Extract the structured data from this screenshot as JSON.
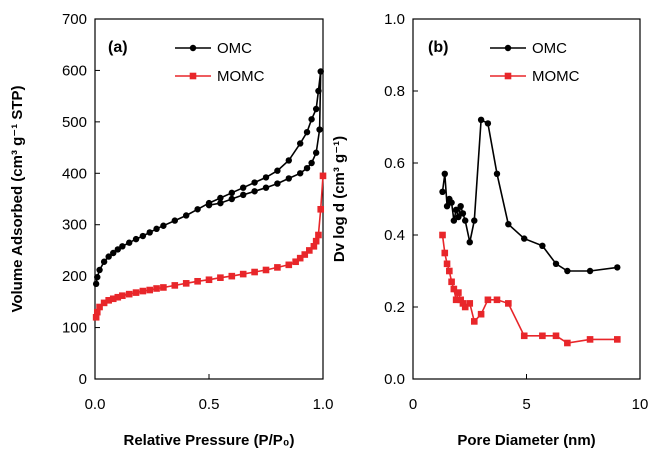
{
  "chart_data": [
    {
      "type": "line",
      "panel_label": "(a)",
      "xlabel": "Relative Pressure (P/P₀)",
      "ylabel": "Volume Adsorbed (cm³ g⁻¹ STP)",
      "xlim": [
        0,
        1.0
      ],
      "ylim": [
        0,
        700
      ],
      "xticks": [
        0,
        0.5,
        1.0
      ],
      "xtick_labels": [
        "0.0",
        "0.5",
        "1.0"
      ],
      "yticks": [
        0,
        100,
        200,
        300,
        400,
        500,
        600,
        700
      ],
      "ytick_labels": [
        "0",
        "100",
        "200",
        "300",
        "400",
        "500",
        "600",
        "700"
      ],
      "legend_position": "top-right",
      "grid": false,
      "series": [
        {
          "name": "OMC",
          "color": "#000000",
          "marker": "circle",
          "x": [
            0.005,
            0.01,
            0.02,
            0.04,
            0.06,
            0.08,
            0.1,
            0.12,
            0.15,
            0.18,
            0.21,
            0.24,
            0.27,
            0.3,
            0.35,
            0.4,
            0.45,
            0.5,
            0.55,
            0.6,
            0.65,
            0.7,
            0.75,
            0.8,
            0.85,
            0.9,
            0.93,
            0.95,
            0.97,
            0.98,
            0.99,
            0.985,
            0.97,
            0.95,
            0.93,
            0.9,
            0.85,
            0.8,
            0.75,
            0.7,
            0.65,
            0.6,
            0.55,
            0.5
          ],
          "y": [
            185,
            198,
            212,
            228,
            238,
            245,
            252,
            258,
            265,
            272,
            278,
            285,
            292,
            298,
            308,
            318,
            330,
            342,
            352,
            362,
            372,
            382,
            392,
            405,
            425,
            458,
            480,
            505,
            525,
            560,
            598,
            485,
            440,
            420,
            410,
            400,
            390,
            380,
            372,
            365,
            358,
            350,
            342,
            338
          ]
        },
        {
          "name": "MOMC",
          "color": "#e8262a",
          "marker": "square",
          "x": [
            0.005,
            0.01,
            0.02,
            0.04,
            0.06,
            0.08,
            0.1,
            0.12,
            0.15,
            0.18,
            0.21,
            0.24,
            0.27,
            0.3,
            0.35,
            0.4,
            0.45,
            0.5,
            0.55,
            0.6,
            0.65,
            0.7,
            0.75,
            0.8,
            0.85,
            0.88,
            0.9,
            0.92,
            0.94,
            0.96,
            0.97,
            0.98,
            0.99,
            1.0
          ],
          "y": [
            120,
            130,
            140,
            148,
            153,
            156,
            159,
            162,
            165,
            168,
            171,
            173,
            176,
            178,
            182,
            186,
            190,
            193,
            197,
            200,
            204,
            208,
            212,
            217,
            222,
            228,
            235,
            242,
            250,
            258,
            268,
            280,
            330,
            395
          ]
        }
      ]
    },
    {
      "type": "line",
      "panel_label": "(b)",
      "xlabel": "Pore Diameter (nm)",
      "ylabel": "Dv log d (cm³ g⁻¹)",
      "xlim": [
        0,
        10
      ],
      "ylim": [
        0,
        1.0
      ],
      "xticks": [
        0,
        5,
        10
      ],
      "xtick_labels": [
        "0",
        "5",
        "10"
      ],
      "yticks": [
        0,
        0.2,
        0.4,
        0.6,
        0.8,
        1.0
      ],
      "ytick_labels": [
        "0.0",
        "0.2",
        "0.4",
        "0.6",
        "0.8",
        "1.0"
      ],
      "legend_position": "top-right",
      "grid": false,
      "series": [
        {
          "name": "OMC",
          "color": "#000000",
          "marker": "circle",
          "x": [
            1.3,
            1.4,
            1.5,
            1.6,
            1.7,
            1.8,
            1.9,
            2.0,
            2.1,
            2.2,
            2.3,
            2.5,
            2.7,
            3.0,
            3.3,
            3.7,
            4.2,
            4.9,
            5.7,
            6.3,
            6.8,
            7.8,
            9.0
          ],
          "y": [
            0.52,
            0.57,
            0.48,
            0.5,
            0.49,
            0.44,
            0.47,
            0.45,
            0.48,
            0.46,
            0.44,
            0.38,
            0.44,
            0.72,
            0.71,
            0.57,
            0.43,
            0.39,
            0.37,
            0.32,
            0.3,
            0.3,
            0.31
          ]
        },
        {
          "name": "MOMC",
          "color": "#e8262a",
          "marker": "square",
          "x": [
            1.3,
            1.4,
            1.5,
            1.6,
            1.7,
            1.8,
            1.9,
            2.0,
            2.1,
            2.2,
            2.3,
            2.5,
            2.7,
            3.0,
            3.3,
            3.7,
            4.2,
            4.9,
            5.7,
            6.3,
            6.8,
            7.8,
            9.0
          ],
          "y": [
            0.4,
            0.35,
            0.32,
            0.3,
            0.27,
            0.25,
            0.22,
            0.24,
            0.22,
            0.21,
            0.2,
            0.21,
            0.16,
            0.18,
            0.22,
            0.22,
            0.21,
            0.12,
            0.12,
            0.12,
            0.1,
            0.11,
            0.11
          ]
        }
      ]
    }
  ]
}
